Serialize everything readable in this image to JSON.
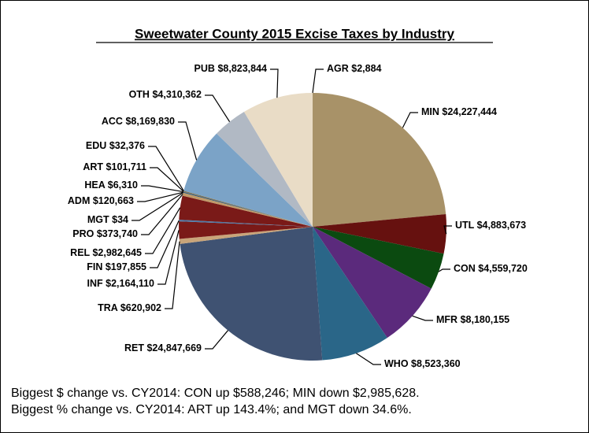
{
  "chart_data": {
    "type": "pie",
    "title": "Sweetwater County 2015 Excise Taxes by Industry",
    "categories": [
      "AGR",
      "MIN",
      "UTL",
      "CON",
      "MFR",
      "WHO",
      "RET",
      "TRA",
      "INF",
      "FIN",
      "REL",
      "PRO",
      "MGT",
      "ADM",
      "HEA",
      "ART",
      "EDU",
      "ACC",
      "OTH",
      "PUB"
    ],
    "values": [
      2884,
      24227444,
      4883673,
      4559720,
      8180155,
      8523360,
      24847669,
      620902,
      2164110,
      197855,
      2982645,
      373740,
      34,
      120663,
      6310,
      101711,
      32376,
      8169830,
      4310362,
      8823844
    ],
    "value_labels": [
      "$2,884",
      "$24,227,444",
      "$4,883,673",
      "$4,559,720",
      "$8,180,155",
      "$8,523,360",
      "$24,847,669",
      "$620,902",
      "$2,164,110",
      "$197,855",
      "$2,982,645",
      "$373,740",
      "$34",
      "$120,663",
      "$6,310",
      "$101,711",
      "$32,376",
      "$8,169,830",
      "$4,310,362",
      "$8,823,844"
    ],
    "colors": [
      "#8a7a50",
      "#a89268",
      "#66110f",
      "#0b4a10",
      "#5b2a7c",
      "#2a6688",
      "#3f5272",
      "#c9a57a",
      "#7a1a18",
      "#4c7aa8",
      "#7a1a18",
      "#c09a6a",
      "#6a3a8a",
      "#2a5a7a",
      "#5a8ab0",
      "#8a6a4a",
      "#3a6a4a",
      "#7ba3c7",
      "#b1b9c4",
      "#e9dcc6"
    ],
    "annotations": [
      "Biggest $ change vs. CY2014: CON up $588,246; MIN down $2,985,628.",
      "Biggest % change vs. CY2014: ART up 143.4%; and MGT down 34.6%."
    ]
  }
}
